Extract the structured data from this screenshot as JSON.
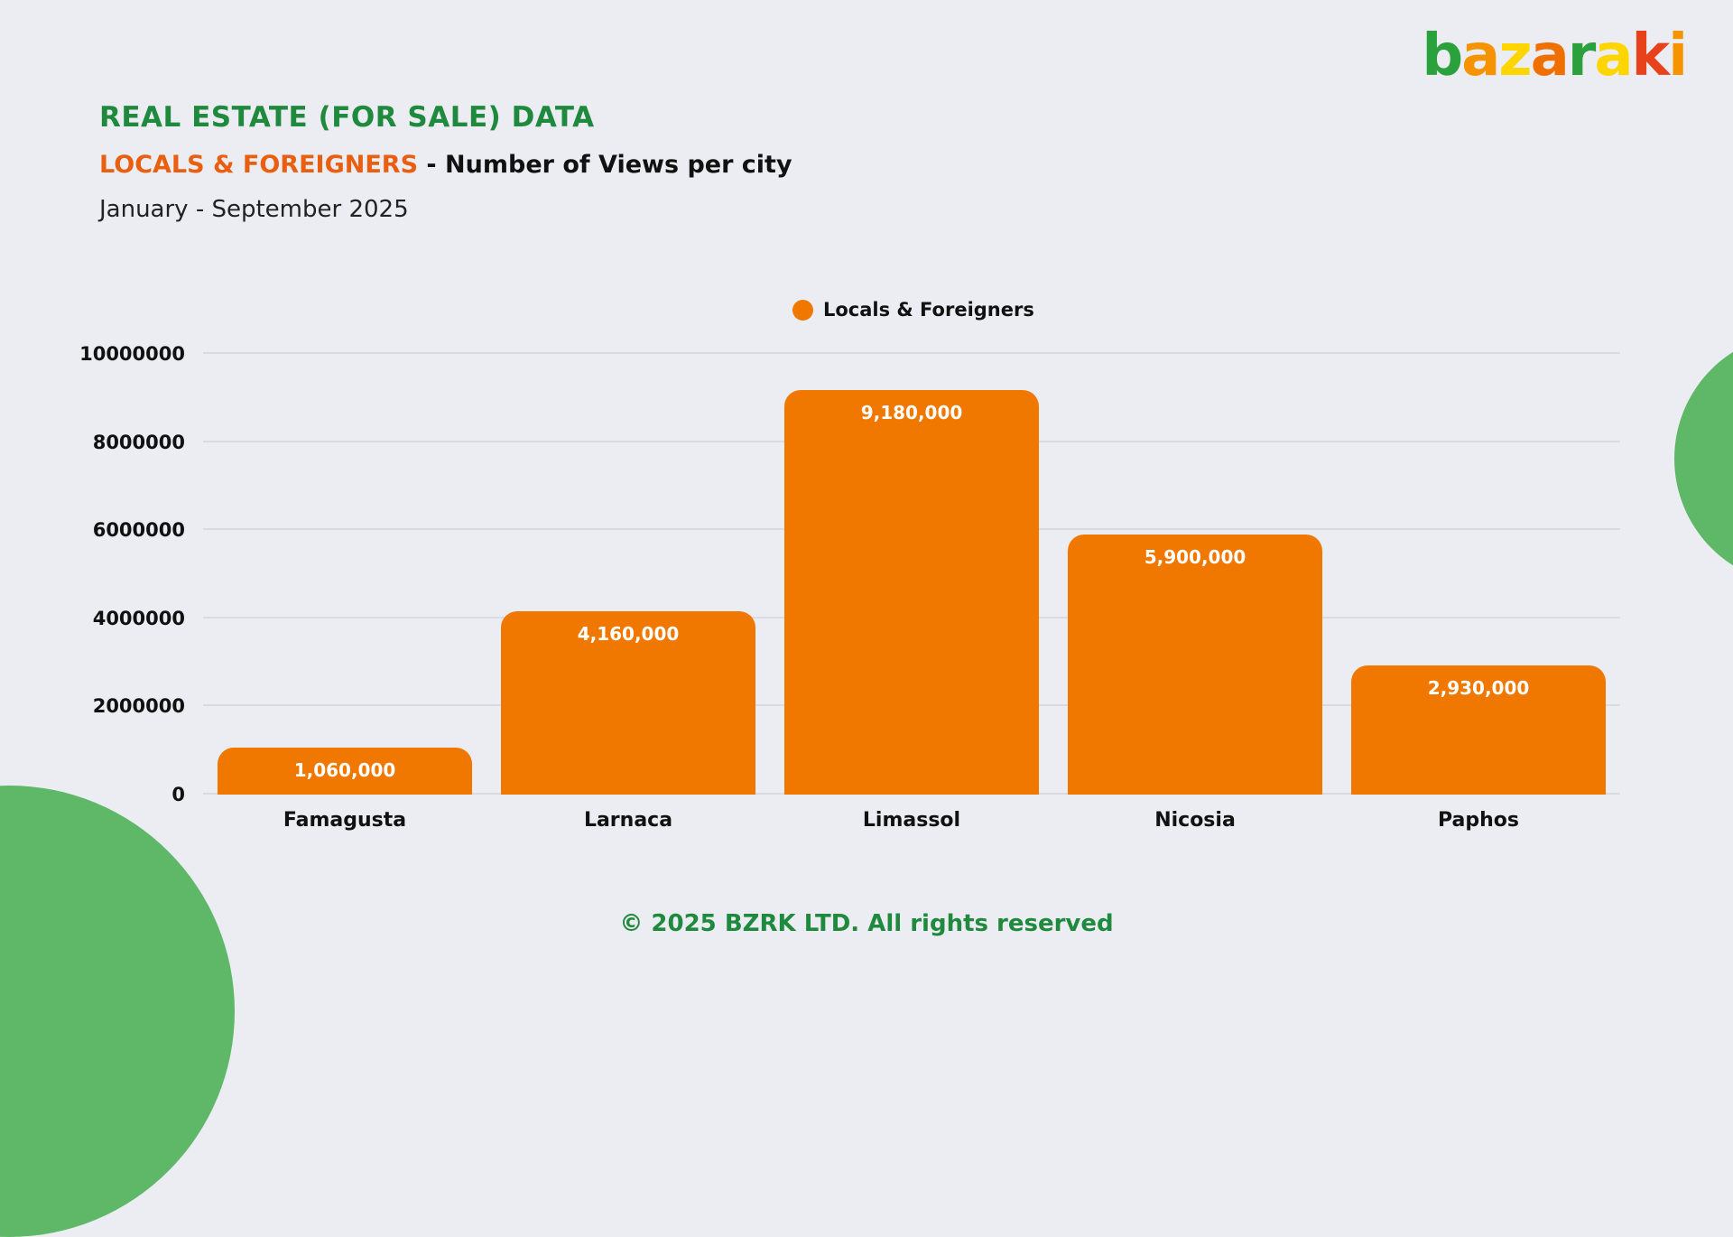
{
  "header": {
    "title": "REAL ESTATE (FOR SALE) DATA",
    "subtitle_highlight": "LOCALS & FOREIGNERS",
    "subtitle_rest": " - Number of Views per city",
    "period": "January - September 2025"
  },
  "logo": {
    "text": "bazaraki",
    "letter_colors": [
      "#2aa13c",
      "#f59300",
      "#ffd500",
      "#ef7000",
      "#2aa13c",
      "#ffd500",
      "#e8421c",
      "#f59300"
    ]
  },
  "chart_data": {
    "type": "bar",
    "title": "LOCALS & FOREIGNERS - Number of Views per city",
    "series_name": "Locals & Foreigners",
    "categories": [
      "Famagusta",
      "Larnaca",
      "Limassol",
      "Nicosia",
      "Paphos"
    ],
    "values": [
      1060000,
      4160000,
      9180000,
      5900000,
      2930000
    ],
    "value_labels": [
      "1,060,000",
      "4,160,000",
      "9,180,000",
      "5,900,000",
      "2,930,000"
    ],
    "ytick_labels": [
      "0",
      "2000000",
      "4000000",
      "6000000",
      "8000000",
      "10000000"
    ],
    "ylim": [
      0,
      10000000
    ],
    "grid": true,
    "legend_position": "top-center",
    "bar_color": "#F07800"
  },
  "footer": {
    "copyright": "© 2025 BZRK LTD. All rights reserved"
  },
  "colors": {
    "title_green": "#1F8A3D",
    "subtitle_orange": "#E95E0F",
    "bar_orange": "#F07800",
    "circle_green": "#5FB868",
    "background": "#ECEDF3"
  }
}
